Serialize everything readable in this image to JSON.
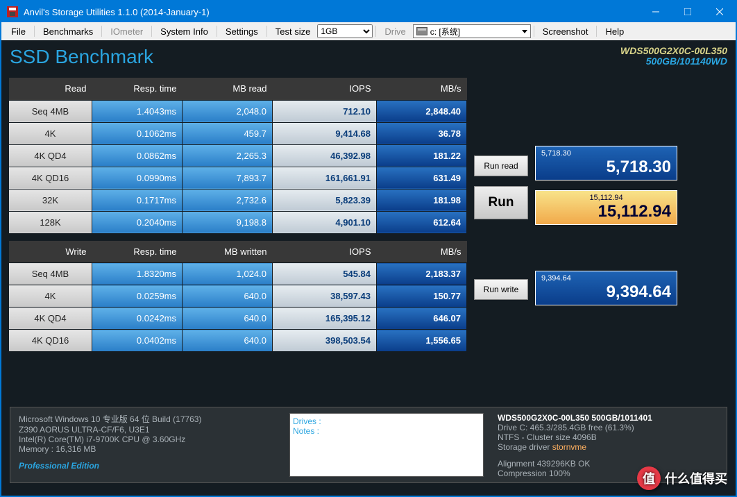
{
  "window": {
    "title": "Anvil's Storage Utilities 1.1.0 (2014-January-1)"
  },
  "menu": {
    "file": "File",
    "bench": "Benchmarks",
    "iometer": "IOmeter",
    "sysinfo": "System Info",
    "settings": "Settings",
    "testsize": "Test size",
    "testsize_val": "1GB",
    "drive": "Drive",
    "drive_val": "c: [系统]",
    "screenshot": "Screenshot",
    "help": "Help"
  },
  "header": {
    "title": "SSD Benchmark",
    "model": "WDS500G2X0C-00L350",
    "cap": "500GB/101140WD"
  },
  "cols": {
    "read": "Read",
    "write": "Write",
    "resp": "Resp. time",
    "mbread": "MB read",
    "mbwritten": "MB written",
    "iops": "IOPS",
    "mbs": "MB/s"
  },
  "readRows": [
    {
      "label": "Seq 4MB",
      "resp": "1.4043ms",
      "mb": "2,048.0",
      "iops": "712.10",
      "mbs": "2,848.40"
    },
    {
      "label": "4K",
      "resp": "0.1062ms",
      "mb": "459.7",
      "iops": "9,414.68",
      "mbs": "36.78"
    },
    {
      "label": "4K QD4",
      "resp": "0.0862ms",
      "mb": "2,265.3",
      "iops": "46,392.98",
      "mbs": "181.22"
    },
    {
      "label": "4K QD16",
      "resp": "0.0990ms",
      "mb": "7,893.7",
      "iops": "161,661.91",
      "mbs": "631.49"
    },
    {
      "label": "32K",
      "resp": "0.1717ms",
      "mb": "2,732.6",
      "iops": "5,823.39",
      "mbs": "181.98"
    },
    {
      "label": "128K",
      "resp": "0.2040ms",
      "mb": "9,198.8",
      "iops": "4,901.10",
      "mbs": "612.64"
    }
  ],
  "writeRows": [
    {
      "label": "Seq 4MB",
      "resp": "1.8320ms",
      "mb": "1,024.0",
      "iops": "545.84",
      "mbs": "2,183.37"
    },
    {
      "label": "4K",
      "resp": "0.0259ms",
      "mb": "640.0",
      "iops": "38,597.43",
      "mbs": "150.77"
    },
    {
      "label": "4K QD4",
      "resp": "0.0242ms",
      "mb": "640.0",
      "iops": "165,395.12",
      "mbs": "646.07"
    },
    {
      "label": "4K QD16",
      "resp": "0.0402ms",
      "mb": "640.0",
      "iops": "398,503.54",
      "mbs": "1,556.65"
    }
  ],
  "buttons": {
    "runread": "Run read",
    "run": "Run",
    "runwrite": "Run write"
  },
  "scores": {
    "read_sm": "5,718.30",
    "read_lg": "5,718.30",
    "total_sm": "15,112.94",
    "total_lg": "15,112.94",
    "write_sm": "9,394.64",
    "write_lg": "9,394.64"
  },
  "sys": {
    "os": "Microsoft Windows 10 专业版 64 位 Build (17763)",
    "mobo": "Z390 AORUS ULTRA-CF/F6, U3E1",
    "cpu": "Intel(R) Core(TM) i7-9700K CPU @ 3.60GHz",
    "mem": "Memory : 16,316 MB",
    "edition": "Professional Edition"
  },
  "notes": {
    "drives": "Drives :",
    "notes": "Notes :"
  },
  "drvinfo": {
    "head": "WDS500G2X0C-00L350 500GB/1011401",
    "l1": "Drive C: 465.3/285.4GB free (61.3%)",
    "l2": "NTFS - Cluster size 4096B",
    "l3a": "Storage driver ",
    "l3b": "stornvme",
    "l4": "Alignment 439296KB OK",
    "l5": "Compression 100%"
  },
  "watermark": {
    "char": "值",
    "text": "什么值得买"
  }
}
